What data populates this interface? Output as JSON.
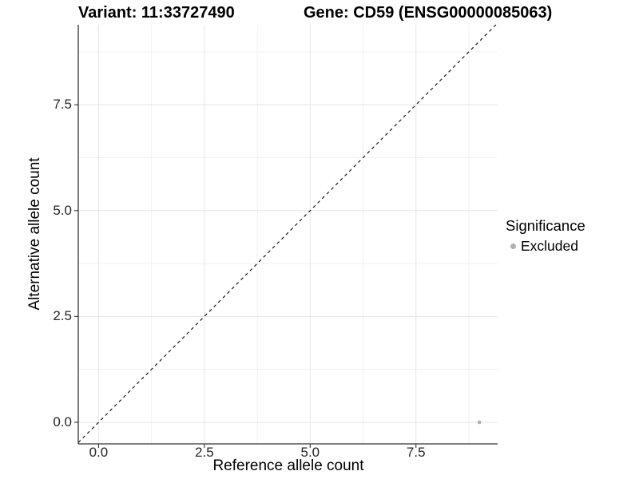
{
  "chart_data": {
    "type": "scatter",
    "title_left": "Variant: 11:33727490",
    "title_right": "Gene: CD59 (ENSG00000085063)",
    "xlabel": "Reference allele count",
    "ylabel": "Alternative allele count",
    "xlim": [
      -0.48,
      9.43
    ],
    "ylim": [
      -0.51,
      9.39
    ],
    "x_ticks": {
      "values": [
        0,
        2.5,
        5,
        7.5
      ],
      "labels": [
        "0.0",
        "2.5",
        "5.0",
        "7.5"
      ]
    },
    "y_ticks": {
      "values": [
        0,
        2.5,
        5,
        7.5
      ],
      "labels": [
        "0.0",
        "2.5",
        "5.0",
        "7.5"
      ]
    },
    "minor_tick_values": [
      1.25,
      3.75,
      6.25,
      8.75
    ],
    "grid": "major+minor",
    "reference_line": {
      "type": "identity y=x",
      "style": "dashed",
      "color": "#1a1a1a"
    },
    "series": [
      {
        "name": "Excluded",
        "color": "#b0b0b0",
        "marker": "circle",
        "points": [
          [
            9,
            0
          ]
        ]
      }
    ],
    "legend": {
      "title": "Significance",
      "position": "right",
      "entries": [
        {
          "label": "Excluded",
          "color": "#b0b0b0",
          "marker": "circle"
        }
      ]
    },
    "colors": {
      "grid_major": "#e6e6e6",
      "grid_minor": "#f1f1f1",
      "axis_line": "#333333",
      "tick_mark": "#333333",
      "tick_text": "#262626",
      "point": "#b0b0b0"
    }
  }
}
